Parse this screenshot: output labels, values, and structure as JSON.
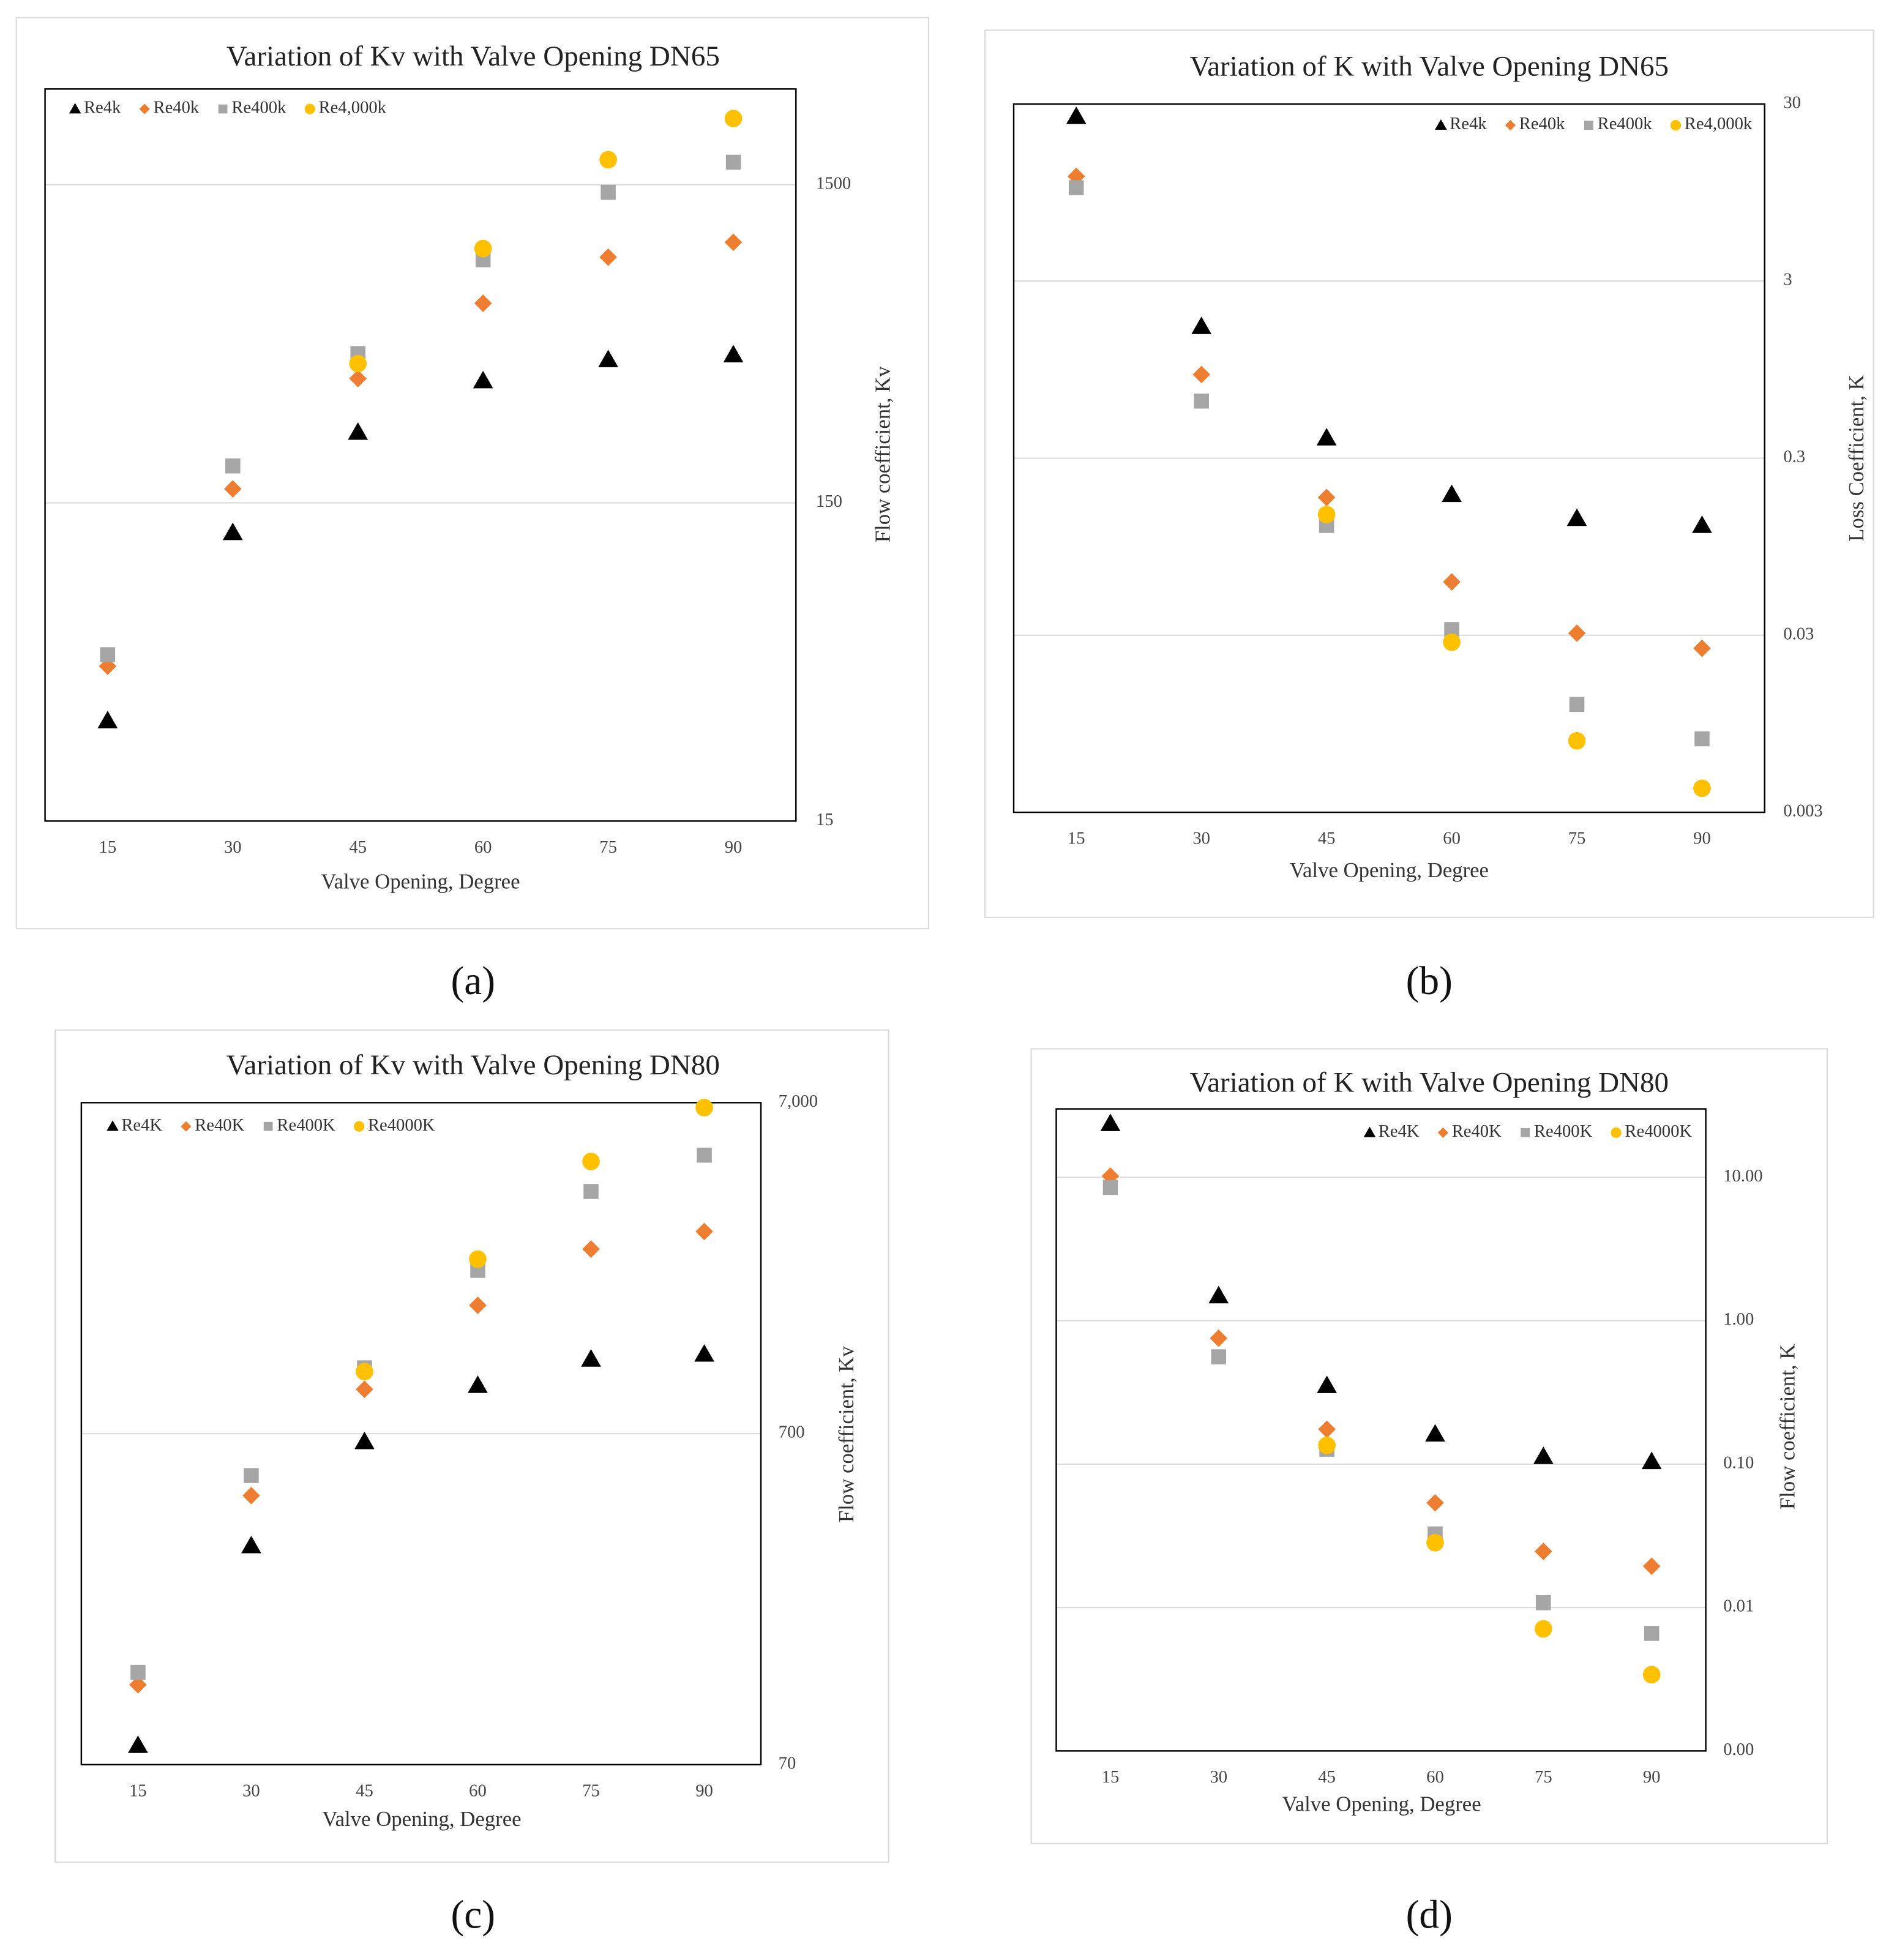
{
  "chart_data": [
    {
      "type": "scatter",
      "title": "Variation of Kv with Valve Opening DN65",
      "caption": "(a)",
      "xlabel": "Valve Opening, Degree",
      "ylabel": "Flow coefficient, Kv",
      "categories": [
        "15",
        "30",
        "45",
        "60",
        "75",
        "90"
      ],
      "ylog": true,
      "ylim": [
        15,
        3000
      ],
      "yticks": [
        15,
        150,
        1500
      ],
      "yaxis_side": "right",
      "grid": true,
      "legend": "top left",
      "series": [
        {
          "name": "Re4k",
          "color": "#000000",
          "marker": "triangle",
          "values": [
            31,
            121,
            250,
            363,
            423,
            438
          ]
        },
        {
          "name": "Re40k",
          "color": "#ed7d31",
          "marker": "diamond",
          "values": [
            46,
            166,
            369,
            636,
            888,
            989
          ]
        },
        {
          "name": "Re400k",
          "color": "#a5a5a5",
          "marker": "square",
          "values": [
            50,
            196,
            442,
            872,
            1420,
            1766
          ]
        },
        {
          "name": "Re4,000k",
          "color": "#ffc000",
          "marker": "circle",
          "values": [
            null,
            null,
            411,
            945,
            1798,
            2423
          ]
        }
      ]
    },
    {
      "type": "scatter",
      "title": "Variation of K with Valve Opening DN65",
      "caption": "(b)",
      "xlabel": "Valve Opening, Degree",
      "ylabel": "Loss Coefficient, K",
      "categories": [
        "15",
        "30",
        "45",
        "60",
        "75",
        "90"
      ],
      "ylog": true,
      "ylim": [
        0.003,
        30
      ],
      "yticks": [
        0.003,
        0.03,
        0.3,
        3,
        30
      ],
      "yaxis_side": "right",
      "grid": true,
      "legend": "top right",
      "series": [
        {
          "name": "Re4k",
          "color": "#000000",
          "marker": "triangle",
          "values": [
            25.5,
            1.66,
            0.39,
            0.187,
            0.137,
            0.125
          ]
        },
        {
          "name": "Re40k",
          "color": "#ed7d31",
          "marker": "diamond",
          "values": [
            11.7,
            0.89,
            0.18,
            0.06,
            0.0308,
            0.0253
          ]
        },
        {
          "name": "Re400k",
          "color": "#a5a5a5",
          "marker": "square",
          "values": [
            10.1,
            0.63,
            0.125,
            0.0323,
            0.0122,
            0.0078
          ]
        },
        {
          "name": "Re4,000k",
          "color": "#ffc000",
          "marker": "circle",
          "values": [
            null,
            null,
            0.144,
            0.0274,
            0.0076,
            0.0041
          ]
        }
      ]
    },
    {
      "type": "scatter",
      "title": "Variation of Kv with Valve Opening DN80",
      "caption": "(c)",
      "xlabel": "Valve Opening, Degree",
      "ylabel": "Flow coefficient, Kv",
      "categories": [
        "15",
        "30",
        "45",
        "60",
        "75",
        "90"
      ],
      "ylog": true,
      "ylim": [
        70,
        7000
      ],
      "yticks": [
        70,
        700,
        {
          "value": 7000,
          "label": "7,000"
        }
      ],
      "yaxis_side": "right",
      "grid": true,
      "legend": "top left",
      "series": [
        {
          "name": "Re4K",
          "color": "#000000",
          "marker": "triangle",
          "values": [
            80,
            321,
            662,
            979,
            1175,
            1217
          ]
        },
        {
          "name": "Re40K",
          "color": "#ed7d31",
          "marker": "diamond",
          "values": [
            122,
            455,
            953,
            1709,
            2527,
            2856
          ]
        },
        {
          "name": "Re400K",
          "color": "#a5a5a5",
          "marker": "square",
          "values": [
            133,
            523,
            1106,
            2179,
            3773,
            4858
          ]
        },
        {
          "name": "Re4000K",
          "color": "#ffc000",
          "marker": "circle",
          "values": [
            null,
            null,
            1078,
            2357,
            4648,
            6762
          ]
        }
      ]
    },
    {
      "type": "scatter",
      "title": "Variation of K with Valve Opening DN80",
      "caption": "(d)",
      "xlabel": "Valve Opening, Degree",
      "ylabel": "Flow coefficient, K",
      "categories": [
        "15",
        "30",
        "45",
        "60",
        "75",
        "90"
      ],
      "ylog": true,
      "ylim": [
        0.001,
        30
      ],
      "yticks": [
        {
          "value": 0.001,
          "label": "0.00"
        },
        {
          "value": 0.01,
          "label": "0.01"
        },
        {
          "value": 0.1,
          "label": "0.10"
        },
        {
          "value": 1,
          "label": "1.00"
        },
        {
          "value": 10,
          "label": "10.00"
        }
      ],
      "yaxis_side": "right",
      "grid": true,
      "legend": "top right",
      "series": [
        {
          "name": "Re4K",
          "color": "#000000",
          "marker": "triangle",
          "values": [
            23.7,
            1.49,
            0.353,
            0.162,
            0.113,
            0.104
          ]
        },
        {
          "name": "Re40K",
          "color": "#ed7d31",
          "marker": "diamond",
          "values": [
            10.2,
            0.755,
            0.175,
            0.0537,
            0.0246,
            0.0194
          ]
        },
        {
          "name": "Re400K",
          "color": "#a5a5a5",
          "marker": "square",
          "values": [
            8.5,
            0.56,
            0.127,
            0.0326,
            0.0108,
            0.0066
          ]
        },
        {
          "name": "Re4000K",
          "color": "#ffc000",
          "marker": "circle",
          "values": [
            null,
            null,
            0.135,
            0.0283,
            0.0071,
            0.0034
          ]
        }
      ]
    }
  ]
}
